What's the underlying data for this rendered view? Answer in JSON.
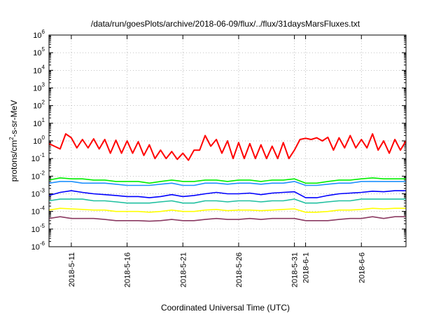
{
  "chart_data": {
    "type": "line",
    "title": "/data/run/goesPlots/archive/2018-06-09/flux/../flux/31daysMarsFluxes.txt",
    "xlabel": "Coordinated Universal Time (UTC)",
    "ylabel_parts": [
      "protons/cm",
      "2",
      "-s-sr-MeV"
    ],
    "y_scale": "log",
    "ylim": [
      1e-06,
      1000000.0
    ],
    "y_tick_exponents": [
      -6,
      -5,
      -4,
      -3,
      -2,
      -1,
      0,
      1,
      2,
      3,
      4,
      5,
      6
    ],
    "xlim": [
      "2018-05-09",
      "2018-06-10"
    ],
    "x_ticks": [
      "2018-5-11",
      "2018-5-16",
      "2018-5-21",
      "2018-5-26",
      "2018-5-31",
      "2018-6-1",
      "2018-6-6"
    ],
    "grid": true,
    "legend": "none",
    "series": [
      {
        "color": "#ff0000",
        "points": [
          [
            "2018-05-09",
            0.7
          ],
          [
            "2018-05-10",
            0.35
          ],
          [
            "2018-05-10.5",
            2.5
          ],
          [
            "2018-05-11",
            1.5
          ],
          [
            "2018-05-11.5",
            0.4
          ],
          [
            "2018-05-12",
            1.2
          ],
          [
            "2018-05-12.5",
            0.4
          ],
          [
            "2018-05-13",
            1.3
          ],
          [
            "2018-05-13.5",
            0.35
          ],
          [
            "2018-05-14",
            1.2
          ],
          [
            "2018-05-14.5",
            0.2
          ],
          [
            "2018-05-15",
            1.1
          ],
          [
            "2018-05-15.5",
            0.2
          ],
          [
            "2018-05-16",
            1.0
          ],
          [
            "2018-05-16.5",
            0.2
          ],
          [
            "2018-05-17",
            0.9
          ],
          [
            "2018-05-17.5",
            0.15
          ],
          [
            "2018-05-18",
            0.6
          ],
          [
            "2018-05-18.5",
            0.1
          ],
          [
            "2018-05-19",
            0.3
          ],
          [
            "2018-05-19.5",
            0.1
          ],
          [
            "2018-05-20",
            0.25
          ],
          [
            "2018-05-20.5",
            0.09
          ],
          [
            "2018-05-21",
            0.2
          ],
          [
            "2018-05-21.5",
            0.08
          ],
          [
            "2018-05-22",
            0.3
          ],
          [
            "2018-05-22.5",
            0.3
          ],
          [
            "2018-05-23",
            2.0
          ],
          [
            "2018-05-23.5",
            0.5
          ],
          [
            "2018-05-24",
            1.2
          ],
          [
            "2018-05-24.5",
            0.2
          ],
          [
            "2018-05-25",
            1.0
          ],
          [
            "2018-05-25.5",
            0.1
          ],
          [
            "2018-05-26",
            0.8
          ],
          [
            "2018-05-26.5",
            0.1
          ],
          [
            "2018-05-27",
            0.7
          ],
          [
            "2018-05-27.5",
            0.1
          ],
          [
            "2018-05-28",
            0.6
          ],
          [
            "2018-05-28.5",
            0.1
          ],
          [
            "2018-05-29",
            0.5
          ],
          [
            "2018-05-29.5",
            0.1
          ],
          [
            "2018-05-30",
            0.8
          ],
          [
            "2018-05-30.5",
            0.1
          ],
          [
            "2018-05-31",
            0.3
          ],
          [
            "2018-05-31.5",
            1.2
          ],
          [
            "2018-06-01",
            1.4
          ],
          [
            "2018-06-01.5",
            1.2
          ],
          [
            "2018-06-02",
            1.5
          ],
          [
            "2018-06-02.5",
            1.0
          ],
          [
            "2018-06-03",
            1.6
          ],
          [
            "2018-06-03.5",
            0.3
          ],
          [
            "2018-06-04",
            1.5
          ],
          [
            "2018-06-04.5",
            0.4
          ],
          [
            "2018-06-05",
            2.0
          ],
          [
            "2018-06-05.5",
            0.4
          ],
          [
            "2018-06-06",
            1.2
          ],
          [
            "2018-06-06.5",
            0.4
          ],
          [
            "2018-06-07",
            2.5
          ],
          [
            "2018-06-07.5",
            0.3
          ],
          [
            "2018-06-08",
            1.0
          ],
          [
            "2018-06-08.5",
            0.2
          ],
          [
            "2018-06-09",
            1.2
          ],
          [
            "2018-06-09.5",
            0.3
          ],
          [
            "2018-06-10",
            1.0
          ]
        ]
      },
      {
        "color": "#00ee00",
        "points": [
          [
            "2018-05-09",
            0.006
          ],
          [
            "2018-05-10",
            0.008
          ],
          [
            "2018-05-11",
            0.007
          ],
          [
            "2018-05-12",
            0.007
          ],
          [
            "2018-05-13",
            0.006
          ],
          [
            "2018-05-14",
            0.006
          ],
          [
            "2018-05-15",
            0.005
          ],
          [
            "2018-05-16",
            0.005
          ],
          [
            "2018-05-17",
            0.005
          ],
          [
            "2018-05-18",
            0.004
          ],
          [
            "2018-05-19",
            0.005
          ],
          [
            "2018-05-20",
            0.006
          ],
          [
            "2018-05-21",
            0.005
          ],
          [
            "2018-05-22",
            0.005
          ],
          [
            "2018-05-23",
            0.006
          ],
          [
            "2018-05-24",
            0.006
          ],
          [
            "2018-05-25",
            0.005
          ],
          [
            "2018-05-26",
            0.006
          ],
          [
            "2018-05-27",
            0.006
          ],
          [
            "2018-05-28",
            0.005
          ],
          [
            "2018-05-29",
            0.006
          ],
          [
            "2018-05-30",
            0.006
          ],
          [
            "2018-05-31",
            0.007
          ],
          [
            "2018-06-01",
            0.004
          ],
          [
            "2018-06-02",
            0.004
          ],
          [
            "2018-06-03",
            0.005
          ],
          [
            "2018-06-04",
            0.006
          ],
          [
            "2018-06-05",
            0.006
          ],
          [
            "2018-06-06",
            0.007
          ],
          [
            "2018-06-07",
            0.008
          ],
          [
            "2018-06-08",
            0.007
          ],
          [
            "2018-06-09",
            0.007
          ],
          [
            "2018-06-10",
            0.007
          ]
        ]
      },
      {
        "color": "#1e90ff",
        "points": [
          [
            "2018-05-09",
            0.004
          ],
          [
            "2018-05-10",
            0.005
          ],
          [
            "2018-05-11",
            0.005
          ],
          [
            "2018-05-12",
            0.004
          ],
          [
            "2018-05-13",
            0.004
          ],
          [
            "2018-05-14",
            0.004
          ],
          [
            "2018-05-15",
            0.0035
          ],
          [
            "2018-05-16",
            0.003
          ],
          [
            "2018-05-17",
            0.003
          ],
          [
            "2018-05-18",
            0.003
          ],
          [
            "2018-05-19",
            0.0035
          ],
          [
            "2018-05-20",
            0.004
          ],
          [
            "2018-05-21",
            0.003
          ],
          [
            "2018-05-22",
            0.003
          ],
          [
            "2018-05-23",
            0.004
          ],
          [
            "2018-05-24",
            0.004
          ],
          [
            "2018-05-25",
            0.0035
          ],
          [
            "2018-05-26",
            0.004
          ],
          [
            "2018-05-27",
            0.004
          ],
          [
            "2018-05-28",
            0.0035
          ],
          [
            "2018-05-29",
            0.004
          ],
          [
            "2018-05-30",
            0.004
          ],
          [
            "2018-05-31",
            0.005
          ],
          [
            "2018-06-01",
            0.003
          ],
          [
            "2018-06-02",
            0.003
          ],
          [
            "2018-06-03",
            0.0035
          ],
          [
            "2018-06-04",
            0.004
          ],
          [
            "2018-06-05",
            0.004
          ],
          [
            "2018-06-06",
            0.005
          ],
          [
            "2018-06-07",
            0.005
          ],
          [
            "2018-06-08",
            0.005
          ],
          [
            "2018-06-09",
            0.005
          ],
          [
            "2018-06-10",
            0.005
          ]
        ]
      },
      {
        "color": "#0000ff",
        "points": [
          [
            "2018-05-09",
            0.0008
          ],
          [
            "2018-05-10",
            0.0012
          ],
          [
            "2018-05-11",
            0.0015
          ],
          [
            "2018-05-12",
            0.0012
          ],
          [
            "2018-05-13",
            0.001
          ],
          [
            "2018-05-14",
            0.0009
          ],
          [
            "2018-05-15",
            0.0008
          ],
          [
            "2018-05-16",
            0.0007
          ],
          [
            "2018-05-17",
            0.0007
          ],
          [
            "2018-05-18",
            0.0006
          ],
          [
            "2018-05-19",
            0.0007
          ],
          [
            "2018-05-20",
            0.0009
          ],
          [
            "2018-05-21",
            0.0007
          ],
          [
            "2018-05-22",
            0.0008
          ],
          [
            "2018-05-23",
            0.001
          ],
          [
            "2018-05-24",
            0.0012
          ],
          [
            "2018-05-25",
            0.001
          ],
          [
            "2018-05-26",
            0.001
          ],
          [
            "2018-05-27",
            0.0011
          ],
          [
            "2018-05-28",
            0.0009
          ],
          [
            "2018-05-29",
            0.0011
          ],
          [
            "2018-05-30",
            0.0012
          ],
          [
            "2018-05-31",
            0.0013
          ],
          [
            "2018-06-01",
            0.0006
          ],
          [
            "2018-06-02",
            0.0006
          ],
          [
            "2018-06-03",
            0.0008
          ],
          [
            "2018-06-04",
            0.001
          ],
          [
            "2018-06-05",
            0.0011
          ],
          [
            "2018-06-06",
            0.0012
          ],
          [
            "2018-06-07",
            0.0014
          ],
          [
            "2018-06-08",
            0.0013
          ],
          [
            "2018-06-09",
            0.0015
          ],
          [
            "2018-06-10",
            0.0015
          ]
        ]
      },
      {
        "color": "#20c0a0",
        "points": [
          [
            "2018-05-09",
            0.0004
          ],
          [
            "2018-05-10",
            0.0005
          ],
          [
            "2018-05-11",
            0.0005
          ],
          [
            "2018-05-12",
            0.0005
          ],
          [
            "2018-05-13",
            0.0004
          ],
          [
            "2018-05-14",
            0.0004
          ],
          [
            "2018-05-15",
            0.00035
          ],
          [
            "2018-05-16",
            0.0003
          ],
          [
            "2018-05-17",
            0.0003
          ],
          [
            "2018-05-18",
            0.0003
          ],
          [
            "2018-05-19",
            0.00035
          ],
          [
            "2018-05-20",
            0.0004
          ],
          [
            "2018-05-21",
            0.0003
          ],
          [
            "2018-05-22",
            0.0003
          ],
          [
            "2018-05-23",
            0.0004
          ],
          [
            "2018-05-24",
            0.0004
          ],
          [
            "2018-05-25",
            0.00035
          ],
          [
            "2018-05-26",
            0.0004
          ],
          [
            "2018-05-27",
            0.0004
          ],
          [
            "2018-05-28",
            0.00035
          ],
          [
            "2018-05-29",
            0.0004
          ],
          [
            "2018-05-30",
            0.0004
          ],
          [
            "2018-05-31",
            0.0005
          ],
          [
            "2018-06-01",
            0.0003
          ],
          [
            "2018-06-02",
            0.0003
          ],
          [
            "2018-06-03",
            0.00035
          ],
          [
            "2018-06-04",
            0.0004
          ],
          [
            "2018-06-05",
            0.0004
          ],
          [
            "2018-06-06",
            0.0005
          ],
          [
            "2018-06-07",
            0.0005
          ],
          [
            "2018-06-08",
            0.0005
          ],
          [
            "2018-06-09",
            0.0005
          ],
          [
            "2018-06-10",
            0.0005
          ]
        ]
      },
      {
        "color": "#ffff00",
        "points": [
          [
            "2018-05-09",
            0.00012
          ],
          [
            "2018-05-10",
            0.00015
          ],
          [
            "2018-05-11",
            0.00014
          ],
          [
            "2018-05-12",
            0.00013
          ],
          [
            "2018-05-13",
            0.00012
          ],
          [
            "2018-05-14",
            0.00012
          ],
          [
            "2018-05-15",
            0.0001
          ],
          [
            "2018-05-16",
            0.0001
          ],
          [
            "2018-05-17",
            0.0001
          ],
          [
            "2018-05-18",
            9e-05
          ],
          [
            "2018-05-19",
            0.0001
          ],
          [
            "2018-05-20",
            0.00012
          ],
          [
            "2018-05-21",
            0.0001
          ],
          [
            "2018-05-22",
            0.0001
          ],
          [
            "2018-05-23",
            0.00012
          ],
          [
            "2018-05-24",
            0.00013
          ],
          [
            "2018-05-25",
            0.00011
          ],
          [
            "2018-05-26",
            0.00012
          ],
          [
            "2018-05-27",
            0.00012
          ],
          [
            "2018-05-28",
            0.00011
          ],
          [
            "2018-05-29",
            0.00012
          ],
          [
            "2018-05-30",
            0.00013
          ],
          [
            "2018-05-31",
            0.00014
          ],
          [
            "2018-06-01",
            9e-05
          ],
          [
            "2018-06-02",
            9e-05
          ],
          [
            "2018-06-03",
            0.0001
          ],
          [
            "2018-06-04",
            0.00012
          ],
          [
            "2018-06-05",
            0.00012
          ],
          [
            "2018-06-06",
            0.00013
          ],
          [
            "2018-06-07",
            0.00015
          ],
          [
            "2018-06-08",
            0.00014
          ],
          [
            "2018-06-09",
            0.00015
          ],
          [
            "2018-06-10",
            0.00015
          ]
        ]
      },
      {
        "color": "#8b3a62",
        "points": [
          [
            "2018-05-09",
            4e-05
          ],
          [
            "2018-05-10",
            5e-05
          ],
          [
            "2018-05-11",
            4e-05
          ],
          [
            "2018-05-12",
            4e-05
          ],
          [
            "2018-05-13",
            4e-05
          ],
          [
            "2018-05-14",
            3.5e-05
          ],
          [
            "2018-05-15",
            3e-05
          ],
          [
            "2018-05-16",
            3e-05
          ],
          [
            "2018-05-17",
            3e-05
          ],
          [
            "2018-05-18",
            2.8e-05
          ],
          [
            "2018-05-19",
            3e-05
          ],
          [
            "2018-05-20",
            3.5e-05
          ],
          [
            "2018-05-21",
            3e-05
          ],
          [
            "2018-05-22",
            3e-05
          ],
          [
            "2018-05-23",
            3.5e-05
          ],
          [
            "2018-05-24",
            4e-05
          ],
          [
            "2018-05-25",
            3.5e-05
          ],
          [
            "2018-05-26",
            3.5e-05
          ],
          [
            "2018-05-27",
            4e-05
          ],
          [
            "2018-05-28",
            3.5e-05
          ],
          [
            "2018-05-29",
            4e-05
          ],
          [
            "2018-05-30",
            4e-05
          ],
          [
            "2018-05-31",
            4e-05
          ],
          [
            "2018-06-01",
            3e-05
          ],
          [
            "2018-06-02",
            3e-05
          ],
          [
            "2018-06-03",
            3e-05
          ],
          [
            "2018-06-04",
            3.5e-05
          ],
          [
            "2018-06-05",
            4e-05
          ],
          [
            "2018-06-06",
            4e-05
          ],
          [
            "2018-06-07",
            5e-05
          ],
          [
            "2018-06-08",
            4e-05
          ],
          [
            "2018-06-09",
            5e-05
          ],
          [
            "2018-06-10",
            5e-05
          ]
        ]
      }
    ]
  }
}
